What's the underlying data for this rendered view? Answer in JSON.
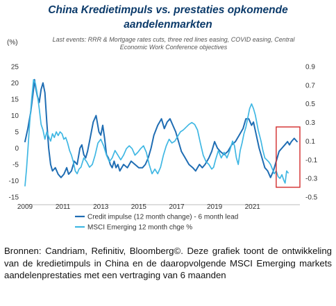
{
  "chart_data": {
    "type": "line",
    "title_lines": [
      "China Kredietimpuls vs. prestaties opkomende",
      "aandelenmarkten"
    ],
    "subtitle": "Last events: RRR & Mortgage rates cuts, three red lines easing, COVID easing, Central Economic Work Conference objectives",
    "left_axis": {
      "label": "(%)",
      "ticks": [
        "25",
        "20",
        "15",
        "10",
        "5",
        "0",
        "-5",
        "-10",
        "-15"
      ],
      "range": [
        -15,
        25
      ]
    },
    "right_axis": {
      "ticks": [
        "0.9",
        "0.7",
        "0.5",
        "0.3",
        "0.1",
        "-0.1",
        "-0.3",
        "-0.5"
      ],
      "range": [
        -0.5,
        0.9
      ]
    },
    "x_axis": {
      "ticks": [
        "2009",
        "2011",
        "2013",
        "2015",
        "2017",
        "2019",
        "2021"
      ],
      "range": [
        2009.0,
        2023.5
      ]
    },
    "series": [
      {
        "name": "Credit impulse (12 month change) - 6 month lead",
        "axis": "left",
        "color": "#1f6db3",
        "points": [
          [
            2009.0,
            2
          ],
          [
            2009.15,
            6
          ],
          [
            2009.3,
            11
          ],
          [
            2009.45,
            18
          ],
          [
            2009.5,
            21
          ],
          [
            2009.55,
            19
          ],
          [
            2009.65,
            16
          ],
          [
            2009.75,
            14
          ],
          [
            2009.85,
            18
          ],
          [
            2009.95,
            20
          ],
          [
            2010.05,
            17
          ],
          [
            2010.15,
            8
          ],
          [
            2010.25,
            0
          ],
          [
            2010.35,
            -5
          ],
          [
            2010.45,
            -7
          ],
          [
            2010.6,
            -6
          ],
          [
            2010.75,
            -8
          ],
          [
            2010.9,
            -9
          ],
          [
            2011.05,
            -8
          ],
          [
            2011.2,
            -6
          ],
          [
            2011.3,
            -8
          ],
          [
            2011.45,
            -7
          ],
          [
            2011.6,
            -4
          ],
          [
            2011.75,
            -5
          ],
          [
            2011.9,
            0
          ],
          [
            2012.0,
            1
          ],
          [
            2012.1,
            -2
          ],
          [
            2012.2,
            -3
          ],
          [
            2012.3,
            -1
          ],
          [
            2012.4,
            2
          ],
          [
            2012.5,
            5
          ],
          [
            2012.6,
            8
          ],
          [
            2012.75,
            10
          ],
          [
            2012.9,
            5
          ],
          [
            2013.0,
            4
          ],
          [
            2013.1,
            7
          ],
          [
            2013.2,
            3
          ],
          [
            2013.3,
            -2
          ],
          [
            2013.4,
            -3
          ],
          [
            2013.5,
            -5
          ],
          [
            2013.6,
            -6
          ],
          [
            2013.7,
            -4
          ],
          [
            2013.8,
            -6
          ],
          [
            2013.9,
            -5
          ],
          [
            2014.0,
            -7
          ],
          [
            2014.2,
            -5
          ],
          [
            2014.4,
            -6
          ],
          [
            2014.6,
            -4
          ],
          [
            2014.8,
            -5
          ],
          [
            2015.0,
            -6
          ],
          [
            2015.2,
            -6
          ],
          [
            2015.35,
            -5
          ],
          [
            2015.5,
            -3
          ],
          [
            2015.65,
            0
          ],
          [
            2015.8,
            4
          ],
          [
            2016.0,
            7
          ],
          [
            2016.2,
            9
          ],
          [
            2016.35,
            6
          ],
          [
            2016.5,
            8
          ],
          [
            2016.65,
            9
          ],
          [
            2016.8,
            7
          ],
          [
            2016.95,
            5
          ],
          [
            2017.1,
            2
          ],
          [
            2017.25,
            -1
          ],
          [
            2017.45,
            -3
          ],
          [
            2017.65,
            -5
          ],
          [
            2017.85,
            -6
          ],
          [
            2018.0,
            -7
          ],
          [
            2018.2,
            -5
          ],
          [
            2018.35,
            -6
          ],
          [
            2018.5,
            -5
          ],
          [
            2018.7,
            -3
          ],
          [
            2018.85,
            -1
          ],
          [
            2019.0,
            2
          ],
          [
            2019.15,
            0
          ],
          [
            2019.3,
            -1
          ],
          [
            2019.5,
            -2
          ],
          [
            2019.7,
            -1
          ],
          [
            2019.9,
            1
          ],
          [
            2020.1,
            2
          ],
          [
            2020.3,
            4
          ],
          [
            2020.5,
            6
          ],
          [
            2020.65,
            9
          ],
          [
            2020.8,
            9
          ],
          [
            2020.95,
            7
          ],
          [
            2021.05,
            8
          ],
          [
            2021.2,
            4
          ],
          [
            2021.35,
            0
          ],
          [
            2021.5,
            -3
          ],
          [
            2021.65,
            -6
          ],
          [
            2021.8,
            -7
          ],
          [
            2021.95,
            -9
          ],
          [
            2022.1,
            -7
          ],
          [
            2022.25,
            -4
          ],
          [
            2022.4,
            -1
          ],
          [
            2022.55,
            0
          ],
          [
            2022.7,
            1
          ],
          [
            2022.85,
            2
          ],
          [
            2022.95,
            1
          ],
          [
            2023.05,
            2
          ],
          [
            2023.2,
            3
          ],
          [
            2023.35,
            2
          ]
        ]
      },
      {
        "name": "MSCI Emerging 12 month chge %",
        "axis": "right",
        "color": "#3fb7e3",
        "points": [
          [
            2009.0,
            -0.38
          ],
          [
            2009.08,
            -0.2
          ],
          [
            2009.15,
            0.0
          ],
          [
            2009.25,
            0.3
          ],
          [
            2009.35,
            0.55
          ],
          [
            2009.45,
            0.76
          ],
          [
            2009.55,
            0.72
          ],
          [
            2009.65,
            0.6
          ],
          [
            2009.75,
            0.45
          ],
          [
            2009.85,
            0.28
          ],
          [
            2009.95,
            0.22
          ],
          [
            2010.05,
            0.12
          ],
          [
            2010.15,
            0.2
          ],
          [
            2010.25,
            0.15
          ],
          [
            2010.35,
            0.1
          ],
          [
            2010.45,
            0.18
          ],
          [
            2010.55,
            0.14
          ],
          [
            2010.65,
            0.2
          ],
          [
            2010.75,
            0.16
          ],
          [
            2010.85,
            0.2
          ],
          [
            2010.95,
            0.18
          ],
          [
            2011.05,
            0.12
          ],
          [
            2011.15,
            0.14
          ],
          [
            2011.25,
            0.08
          ],
          [
            2011.35,
            0.0
          ],
          [
            2011.45,
            -0.05
          ],
          [
            2011.55,
            -0.12
          ],
          [
            2011.65,
            -0.22
          ],
          [
            2011.75,
            -0.25
          ],
          [
            2011.85,
            -0.2
          ],
          [
            2011.95,
            -0.18
          ],
          [
            2012.1,
            -0.08
          ],
          [
            2012.25,
            -0.12
          ],
          [
            2012.4,
            -0.18
          ],
          [
            2012.55,
            -0.15
          ],
          [
            2012.7,
            -0.05
          ],
          [
            2012.85,
            0.08
          ],
          [
            2013.0,
            0.12
          ],
          [
            2013.15,
            0.05
          ],
          [
            2013.3,
            -0.05
          ],
          [
            2013.45,
            -0.12
          ],
          [
            2013.6,
            -0.08
          ],
          [
            2013.75,
            0.0
          ],
          [
            2013.9,
            -0.05
          ],
          [
            2014.05,
            -0.1
          ],
          [
            2014.2,
            -0.05
          ],
          [
            2014.35,
            0.02
          ],
          [
            2014.5,
            0.05
          ],
          [
            2014.65,
            0.02
          ],
          [
            2014.8,
            -0.05
          ],
          [
            2014.95,
            -0.02
          ],
          [
            2015.1,
            0.02
          ],
          [
            2015.25,
            0.05
          ],
          [
            2015.4,
            -0.02
          ],
          [
            2015.55,
            -0.15
          ],
          [
            2015.7,
            -0.25
          ],
          [
            2015.85,
            -0.2
          ],
          [
            2016.0,
            -0.25
          ],
          [
            2016.15,
            -0.18
          ],
          [
            2016.3,
            -0.05
          ],
          [
            2016.45,
            0.05
          ],
          [
            2016.6,
            0.12
          ],
          [
            2016.75,
            0.08
          ],
          [
            2016.9,
            0.1
          ],
          [
            2017.05,
            0.15
          ],
          [
            2017.2,
            0.2
          ],
          [
            2017.35,
            0.22
          ],
          [
            2017.5,
            0.25
          ],
          [
            2017.65,
            0.28
          ],
          [
            2017.8,
            0.3
          ],
          [
            2017.95,
            0.28
          ],
          [
            2018.1,
            0.22
          ],
          [
            2018.25,
            0.08
          ],
          [
            2018.4,
            -0.05
          ],
          [
            2018.55,
            -0.12
          ],
          [
            2018.7,
            -0.15
          ],
          [
            2018.85,
            -0.2
          ],
          [
            2018.95,
            -0.18
          ],
          [
            2019.05,
            -0.1
          ],
          [
            2019.2,
            0.0
          ],
          [
            2019.35,
            -0.08
          ],
          [
            2019.5,
            -0.02
          ],
          [
            2019.65,
            -0.08
          ],
          [
            2019.8,
            0.0
          ],
          [
            2019.95,
            0.1
          ],
          [
            2020.05,
            0.05
          ],
          [
            2020.15,
            -0.08
          ],
          [
            2020.25,
            -0.15
          ],
          [
            2020.35,
            0.0
          ],
          [
            2020.45,
            0.08
          ],
          [
            2020.55,
            0.18
          ],
          [
            2020.65,
            0.25
          ],
          [
            2020.75,
            0.35
          ],
          [
            2020.85,
            0.45
          ],
          [
            2020.95,
            0.5
          ],
          [
            2021.05,
            0.45
          ],
          [
            2021.15,
            0.38
          ],
          [
            2021.3,
            0.22
          ],
          [
            2021.45,
            0.1
          ],
          [
            2021.55,
            0.0
          ],
          [
            2021.65,
            -0.08
          ],
          [
            2021.75,
            -0.1
          ],
          [
            2021.85,
            -0.12
          ],
          [
            2021.95,
            -0.15
          ],
          [
            2022.05,
            -0.2
          ],
          [
            2022.15,
            -0.25
          ],
          [
            2022.25,
            -0.22
          ],
          [
            2022.35,
            -0.28
          ],
          [
            2022.45,
            -0.3
          ],
          [
            2022.55,
            -0.26
          ],
          [
            2022.65,
            -0.32
          ],
          [
            2022.72,
            -0.35
          ],
          [
            2022.8,
            -0.22
          ],
          [
            2022.88,
            -0.24
          ]
        ]
      }
    ],
    "highlight_box": {
      "x_range": [
        2022.25,
        2023.5
      ],
      "y_range": [
        -12,
        6.5
      ],
      "color": "#d22b2b"
    },
    "legend_position": "bottom-left",
    "grid": false
  },
  "caption": "Bronnen: Candriam, Refinitiv, Bloomberg©. Deze grafiek toont de ontwikkeling van de kredietimpuls in China en de daaropvolgende MSCI Emerging markets aandelenprestaties met een vertraging van 6 maanden"
}
